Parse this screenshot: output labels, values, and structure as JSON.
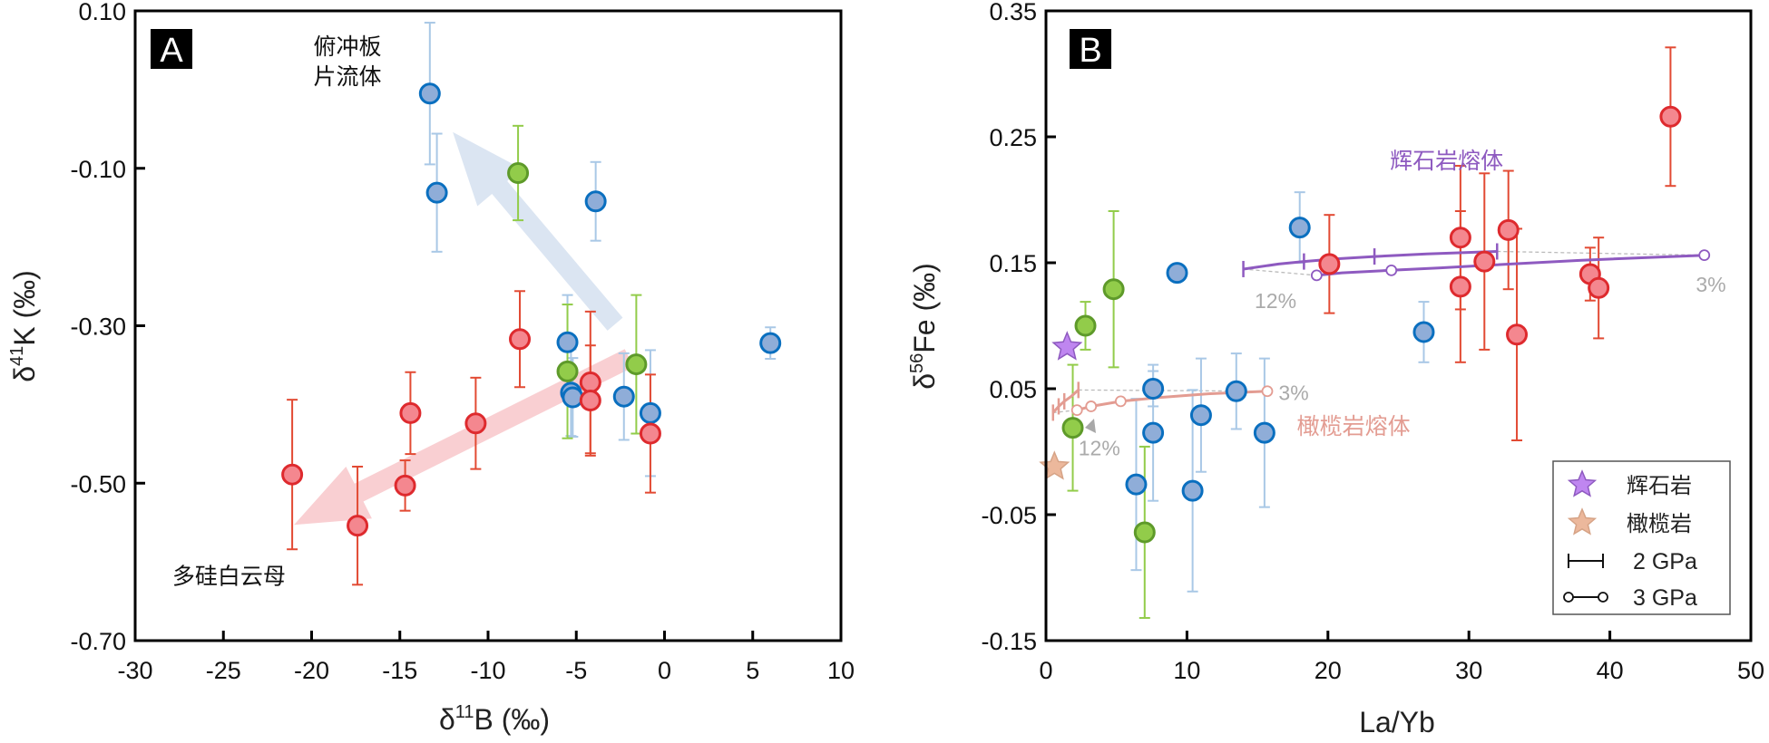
{
  "chart_data": [
    {
      "panel": "A",
      "type": "scatter",
      "title": "",
      "xlabel": "δ11B (‰)",
      "xlabel_parts": {
        "main": "δ",
        "sup": "11",
        "rest": "B (‰)"
      },
      "ylabel": "δ41K (‰)",
      "ylabel_parts": {
        "main": "δ",
        "sup": "41",
        "rest": "K (‰)"
      },
      "xlim": [
        -30,
        10
      ],
      "ylim": [
        -0.7,
        0.1
      ],
      "xticks": [
        -30,
        -25,
        -20,
        -15,
        -10,
        -5,
        0,
        5,
        10
      ],
      "xtick_labels": [
        "-30",
        "-25",
        "-20",
        "-15",
        "-10",
        "-5",
        "0",
        "5",
        "10"
      ],
      "yticks": [
        0.1,
        -0.1,
        -0.3,
        -0.5,
        -0.7
      ],
      "ytick_labels": [
        "0.10",
        "-0.10",
        "-0.30",
        "-0.50",
        "-0.70"
      ],
      "grid": false,
      "series": [
        {
          "name": "blue",
          "fill": "#8fadd8",
          "stroke": "#0a6fbf",
          "errcolor": "#a9c8e6",
          "points": [
            {
              "x": -13.3,
              "y": -0.005,
              "err": 0.09
            },
            {
              "x": -12.9,
              "y": -0.131,
              "err": 0.075
            },
            {
              "x": -3.9,
              "y": -0.142,
              "err": 0.05
            },
            {
              "x": -5.5,
              "y": -0.321,
              "err": 0.06
            },
            {
              "x": -5.3,
              "y": -0.385,
              "err": 0.055
            },
            {
              "x": -5.2,
              "y": -0.391,
              "err": 0.05
            },
            {
              "x": -2.3,
              "y": -0.39,
              "err": 0.055
            },
            {
              "x": -0.8,
              "y": -0.411,
              "err": 0.08
            },
            {
              "x": 6.0,
              "y": -0.322,
              "err": 0.02
            }
          ]
        },
        {
          "name": "green",
          "fill": "#92cc4a",
          "stroke": "#5e9a2a",
          "errcolor": "#92cc4a",
          "points": [
            {
              "x": -8.3,
              "y": -0.106,
              "err": 0.06
            },
            {
              "x": -5.5,
              "y": -0.358,
              "err": 0.085
            },
            {
              "x": -1.6,
              "y": -0.349,
              "err": 0.088
            }
          ]
        },
        {
          "name": "red",
          "fill": "#f4878f",
          "stroke": "#de2a2e",
          "errcolor": "#e24a33",
          "points": [
            {
              "x": -21.1,
              "y": -0.489,
              "err": 0.095
            },
            {
              "x": -17.4,
              "y": -0.554,
              "err": 0.075
            },
            {
              "x": -14.4,
              "y": -0.411,
              "err": 0.052
            },
            {
              "x": -14.7,
              "y": -0.503,
              "err": 0.032
            },
            {
              "x": -10.7,
              "y": -0.424,
              "err": 0.058
            },
            {
              "x": -8.2,
              "y": -0.317,
              "err": 0.061
            },
            {
              "x": -4.2,
              "y": -0.372,
              "err": 0.09
            },
            {
              "x": -4.2,
              "y": -0.395,
              "err": 0.07
            },
            {
              "x": -0.8,
              "y": -0.437,
              "err": 0.075
            }
          ]
        }
      ],
      "arrows": [
        {
          "name": "slab-fluid-arrow",
          "color": "#dbe5f2",
          "from": [
            -2.8,
            -0.298
          ],
          "to": [
            -12.0,
            -0.054
          ]
        },
        {
          "name": "phengite-arrow",
          "color": "#f9cfd2",
          "from": [
            -2.0,
            -0.341
          ],
          "to": [
            -21.0,
            -0.553
          ]
        }
      ],
      "annotations": [
        {
          "name": "slab-fluid-label-line1",
          "text": "俯冲板",
          "x": -19.9,
          "y": 0.045
        },
        {
          "name": "slab-fluid-label-line2",
          "text": "片流体",
          "x": -19.9,
          "y": 0.007
        },
        {
          "name": "phengite-label",
          "text": "多硅白云母",
          "x": -27.9,
          "y": -0.628
        }
      ]
    },
    {
      "panel": "B",
      "type": "scatter",
      "title": "",
      "xlabel": "La/Yb",
      "ylabel": "δ56Fe (‰)",
      "ylabel_parts": {
        "main": "δ",
        "sup": "56",
        "rest": "Fe (‰)"
      },
      "xlim": [
        0,
        50
      ],
      "ylim": [
        -0.15,
        0.35
      ],
      "xticks": [
        0,
        10,
        20,
        30,
        40,
        50
      ],
      "xtick_labels": [
        "0",
        "10",
        "20",
        "30",
        "40",
        "50"
      ],
      "yticks": [
        0.35,
        0.25,
        0.15,
        0.05,
        -0.05,
        -0.15
      ],
      "ytick_labels": [
        "0.35",
        "0.25",
        "0.15",
        "0.05",
        "-0.05",
        "-0.15"
      ],
      "grid": false,
      "legend_position": "bottom-right",
      "series": [
        {
          "name": "blue",
          "fill": "#8fadd8",
          "stroke": "#0a6fbf",
          "errcolor": "#a9c8e6",
          "points": [
            {
              "x": 18.0,
              "y": 0.178,
              "err": 0.028
            },
            {
              "x": 9.3,
              "y": 0.142,
              "err": 0
            },
            {
              "x": 26.8,
              "y": 0.095,
              "err": 0.024
            },
            {
              "x": 7.6,
              "y": 0.05,
              "err": 0.014
            },
            {
              "x": 7.6,
              "y": 0.015,
              "err": 0.054
            },
            {
              "x": 6.4,
              "y": -0.026,
              "err": 0.068
            },
            {
              "x": 11.0,
              "y": 0.029,
              "err": 0.045
            },
            {
              "x": 10.4,
              "y": -0.031,
              "err": 0.08
            },
            {
              "x": 13.5,
              "y": 0.048,
              "err": 0.03
            },
            {
              "x": 15.5,
              "y": 0.015,
              "err": 0.059
            }
          ]
        },
        {
          "name": "green",
          "fill": "#92cc4a",
          "stroke": "#5e9a2a",
          "errcolor": "#92cc4a",
          "points": [
            {
              "x": 4.8,
              "y": 0.129,
              "err": 0.062
            },
            {
              "x": 2.8,
              "y": 0.1,
              "err": 0.019
            },
            {
              "x": 1.9,
              "y": 0.019,
              "err": 0.05
            },
            {
              "x": 7.0,
              "y": -0.064,
              "err": 0.068
            }
          ]
        },
        {
          "name": "red",
          "fill": "#f4878f",
          "stroke": "#de2a2e",
          "errcolor": "#e24a33",
          "points": [
            {
              "x": 20.1,
              "y": 0.149,
              "err": 0.039
            },
            {
              "x": 29.4,
              "y": 0.17,
              "err": 0.057
            },
            {
              "x": 29.4,
              "y": 0.131,
              "err": 0.06
            },
            {
              "x": 31.1,
              "y": 0.151,
              "err": 0.07
            },
            {
              "x": 32.8,
              "y": 0.176,
              "err": 0.047
            },
            {
              "x": 33.4,
              "y": 0.093,
              "err": 0.084
            },
            {
              "x": 38.6,
              "y": 0.141,
              "err": 0.021
            },
            {
              "x": 39.2,
              "y": 0.13,
              "err": 0.04
            },
            {
              "x": 44.3,
              "y": 0.266,
              "err": 0.055
            }
          ]
        }
      ],
      "stars": [
        {
          "name": "pyroxenite",
          "x": 1.5,
          "y": 0.083,
          "fill": "#bf86f0",
          "stroke": "#8e5ac0"
        },
        {
          "name": "peridotite",
          "x": 0.6,
          "y": -0.012,
          "fill": "#ecb89c",
          "stroke": "#d6a386"
        }
      ],
      "melting_curves": [
        {
          "name": "pyroxenite-melt-2gpa",
          "pressure": "2 GPa",
          "color": "#8e5ac0",
          "style": "tick",
          "points": [
            [
              14.0,
              0.145
            ],
            [
              16.5,
              0.149
            ],
            [
              18.3,
              0.151
            ],
            [
              20.5,
              0.153
            ],
            [
              23.3,
              0.155
            ],
            [
              27.0,
              0.157
            ],
            [
              32.0,
              0.159
            ]
          ],
          "markers": [
            [
              14.0,
              0.145
            ],
            [
              18.3,
              0.151
            ],
            [
              23.3,
              0.155
            ],
            [
              32.0,
              0.159
            ]
          ]
        },
        {
          "name": "pyroxenite-melt-3gpa",
          "pressure": "3 GPa",
          "color": "#8e5ac0",
          "style": "circle",
          "points": [
            [
              19.2,
              0.14
            ],
            [
              21.0,
              0.142
            ],
            [
              24.5,
              0.144
            ],
            [
              28.0,
              0.146
            ],
            [
              31.3,
              0.148
            ],
            [
              38.0,
              0.152
            ],
            [
              46.7,
              0.156
            ]
          ],
          "markers": [
            [
              19.2,
              0.14
            ],
            [
              24.5,
              0.144
            ],
            [
              31.3,
              0.148
            ],
            [
              46.7,
              0.156
            ]
          ]
        },
        {
          "name": "peridotite-melt-2gpa",
          "pressure": "2 GPa",
          "color": "#e39c92",
          "style": "tick",
          "points": [
            [
              0.5,
              0.031
            ],
            [
              0.9,
              0.036
            ],
            [
              1.3,
              0.04
            ],
            [
              1.8,
              0.044
            ],
            [
              2.3,
              0.049
            ]
          ],
          "markers": [
            [
              0.5,
              0.031
            ],
            [
              0.9,
              0.036
            ],
            [
              1.3,
              0.04
            ],
            [
              2.3,
              0.049
            ]
          ]
        },
        {
          "name": "peridotite-melt-3gpa",
          "pressure": "3 GPa",
          "color": "#e39c92",
          "style": "circle",
          "points": [
            [
              2.2,
              0.033
            ],
            [
              3.2,
              0.036
            ],
            [
              5.3,
              0.04
            ],
            [
              8.0,
              0.043
            ],
            [
              11.5,
              0.046
            ],
            [
              15.7,
              0.048
            ]
          ],
          "markers": [
            [
              2.2,
              0.033
            ],
            [
              3.2,
              0.036
            ],
            [
              5.3,
              0.04
            ],
            [
              15.7,
              0.048
            ]
          ]
        }
      ],
      "dashed_links": [
        {
          "from": [
            14.0,
            0.145
          ],
          "to": [
            19.2,
            0.14
          ]
        },
        {
          "from": [
            32.0,
            0.159
          ],
          "to": [
            46.7,
            0.156
          ]
        },
        {
          "from": [
            0.5,
            0.031
          ],
          "to": [
            2.2,
            0.033
          ]
        },
        {
          "from": [
            2.3,
            0.049
          ],
          "to": [
            15.7,
            0.048
          ]
        }
      ],
      "annotations": [
        {
          "name": "pyroxenite-melt-label",
          "text": "辉石岩熔体",
          "x": 24.4,
          "y": 0.225,
          "color": "#8e5ac0"
        },
        {
          "name": "peridotite-melt-label",
          "text": "橄榄岩熔体",
          "x": 17.8,
          "y": 0.014,
          "color": "#e39c92"
        },
        {
          "name": "pct-12-pyroxenite",
          "text": "12%",
          "x": 14.8,
          "y": 0.114,
          "color": "#aaaaaa"
        },
        {
          "name": "pct-3-pyroxenite",
          "text": "3%",
          "x": 46.1,
          "y": 0.127,
          "color": "#aaaaaa"
        },
        {
          "name": "pct-12-peridotite",
          "text": "12%",
          "x": 2.3,
          "y": -0.003,
          "color": "#aaaaaa"
        },
        {
          "name": "pct-3-peridotite",
          "text": "3%",
          "x": 16.5,
          "y": 0.041,
          "color": "#aaaaaa"
        }
      ],
      "legend": [
        {
          "key": "star-pyroxenite",
          "label": "辉石岩"
        },
        {
          "key": "star-peridotite",
          "label": "橄榄岩"
        },
        {
          "key": "line-2gpa",
          "label": "2 GPa"
        },
        {
          "key": "line-3gpa",
          "label": "3 GPa"
        }
      ]
    }
  ]
}
